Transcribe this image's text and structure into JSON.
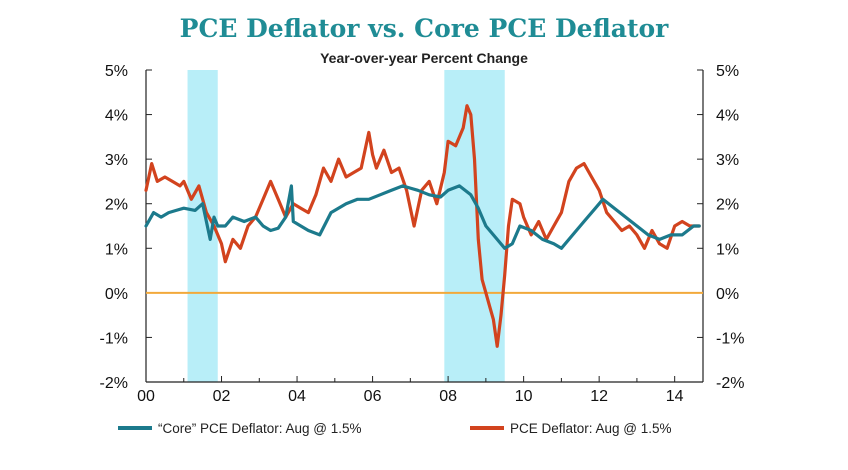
{
  "chart_data": {
    "type": "line",
    "title": "PCE Deflator vs. Core PCE Deflator",
    "subtitle": "Year-over-year Percent Change",
    "x_tick_labels": [
      "00",
      "02",
      "04",
      "06",
      "08",
      "10",
      "12",
      "14"
    ],
    "y_tick_labels_left": [
      "5%",
      "4%",
      "3%",
      "2%",
      "1%",
      "0%",
      "-1%",
      "-2%"
    ],
    "y_tick_labels_right": [
      "5%",
      "4%",
      "3%",
      "2%",
      "1%",
      "0%",
      "-1%",
      "-2%"
    ],
    "xlim": [
      2000,
      2014.75
    ],
    "ylim": [
      -2,
      5
    ],
    "recessions": [
      [
        2001.1,
        2001.9
      ],
      [
        2007.9,
        2009.5
      ]
    ],
    "zero_line_color": "#f2a93b",
    "recession_color": "#b8eef8",
    "series": [
      {
        "name": "“Core” PCE Deflator: Aug @ 1.5%",
        "color": "#1c7a8c",
        "x": [
          2000.0,
          2000.2,
          2000.4,
          2000.6,
          2000.8,
          2001.0,
          2001.3,
          2001.5,
          2001.7,
          2001.8,
          2001.9,
          2002.1,
          2002.3,
          2002.6,
          2002.9,
          2003.1,
          2003.3,
          2003.5,
          2003.7,
          2003.85,
          2003.9,
          2004.1,
          2004.3,
          2004.6,
          2004.9,
          2005.3,
          2005.6,
          2005.9,
          2006.2,
          2006.5,
          2006.8,
          2007.0,
          2007.2,
          2007.5,
          2007.8,
          2008.0,
          2008.3,
          2008.6,
          2008.8,
          2009.0,
          2009.3,
          2009.5,
          2009.7,
          2009.9,
          2010.2,
          2010.5,
          2010.8,
          2011.0,
          2011.3,
          2011.6,
          2011.9,
          2012.1,
          2012.4,
          2012.7,
          2013.0,
          2013.3,
          2013.6,
          2013.9,
          2014.2,
          2014.5,
          2014.65
        ],
        "values": [
          1.5,
          1.8,
          1.7,
          1.8,
          1.85,
          1.9,
          1.85,
          2.0,
          1.2,
          1.7,
          1.5,
          1.5,
          1.7,
          1.6,
          1.7,
          1.5,
          1.4,
          1.45,
          1.7,
          2.4,
          1.6,
          1.5,
          1.4,
          1.3,
          1.8,
          2.0,
          2.1,
          2.1,
          2.2,
          2.3,
          2.4,
          2.35,
          2.3,
          2.2,
          2.15,
          2.3,
          2.4,
          2.2,
          1.9,
          1.5,
          1.2,
          1.0,
          1.1,
          1.5,
          1.4,
          1.2,
          1.1,
          1.0,
          1.3,
          1.6,
          1.9,
          2.1,
          1.9,
          1.7,
          1.5,
          1.3,
          1.2,
          1.3,
          1.3,
          1.5,
          1.5
        ]
      },
      {
        "name": "PCE Deflator: Aug @ 1.5%",
        "color": "#d2431e",
        "x": [
          2000.0,
          2000.15,
          2000.3,
          2000.5,
          2000.7,
          2000.9,
          2001.0,
          2001.2,
          2001.4,
          2001.6,
          2001.8,
          2002.0,
          2002.1,
          2002.3,
          2002.5,
          2002.7,
          2002.9,
          2003.1,
          2003.3,
          2003.5,
          2003.7,
          2003.9,
          2004.1,
          2004.3,
          2004.5,
          2004.7,
          2004.9,
          2005.1,
          2005.3,
          2005.5,
          2005.7,
          2005.9,
          2006.0,
          2006.1,
          2006.3,
          2006.5,
          2006.7,
          2006.9,
          2007.1,
          2007.3,
          2007.5,
          2007.7,
          2007.9,
          2008.0,
          2008.2,
          2008.4,
          2008.5,
          2008.6,
          2008.7,
          2008.8,
          2008.9,
          2009.0,
          2009.1,
          2009.2,
          2009.3,
          2009.4,
          2009.5,
          2009.6,
          2009.7,
          2009.9,
          2010.0,
          2010.2,
          2010.4,
          2010.6,
          2010.8,
          2011.0,
          2011.2,
          2011.4,
          2011.6,
          2011.8,
          2012.0,
          2012.2,
          2012.4,
          2012.6,
          2012.8,
          2013.0,
          2013.2,
          2013.4,
          2013.6,
          2013.8,
          2014.0,
          2014.2,
          2014.4,
          2014.6,
          2014.65
        ],
        "values": [
          2.3,
          2.9,
          2.5,
          2.6,
          2.5,
          2.4,
          2.5,
          2.1,
          2.4,
          1.8,
          1.5,
          1.1,
          0.7,
          1.2,
          1.0,
          1.5,
          1.7,
          2.1,
          2.5,
          2.1,
          1.7,
          2.0,
          1.9,
          1.8,
          2.2,
          2.8,
          2.5,
          3.0,
          2.6,
          2.7,
          2.8,
          3.6,
          3.1,
          2.8,
          3.2,
          2.7,
          2.8,
          2.3,
          1.5,
          2.3,
          2.5,
          2.0,
          2.7,
          3.4,
          3.3,
          3.7,
          4.2,
          4.0,
          3.0,
          1.2,
          0.3,
          0.0,
          -0.3,
          -0.6,
          -1.2,
          -0.5,
          0.4,
          1.5,
          2.1,
          2.0,
          1.7,
          1.3,
          1.6,
          1.2,
          1.5,
          1.8,
          2.5,
          2.8,
          2.9,
          2.6,
          2.3,
          1.8,
          1.6,
          1.4,
          1.5,
          1.3,
          1.0,
          1.4,
          1.1,
          1.0,
          1.5,
          1.6,
          1.5,
          1.5,
          1.5
        ]
      }
    ]
  }
}
